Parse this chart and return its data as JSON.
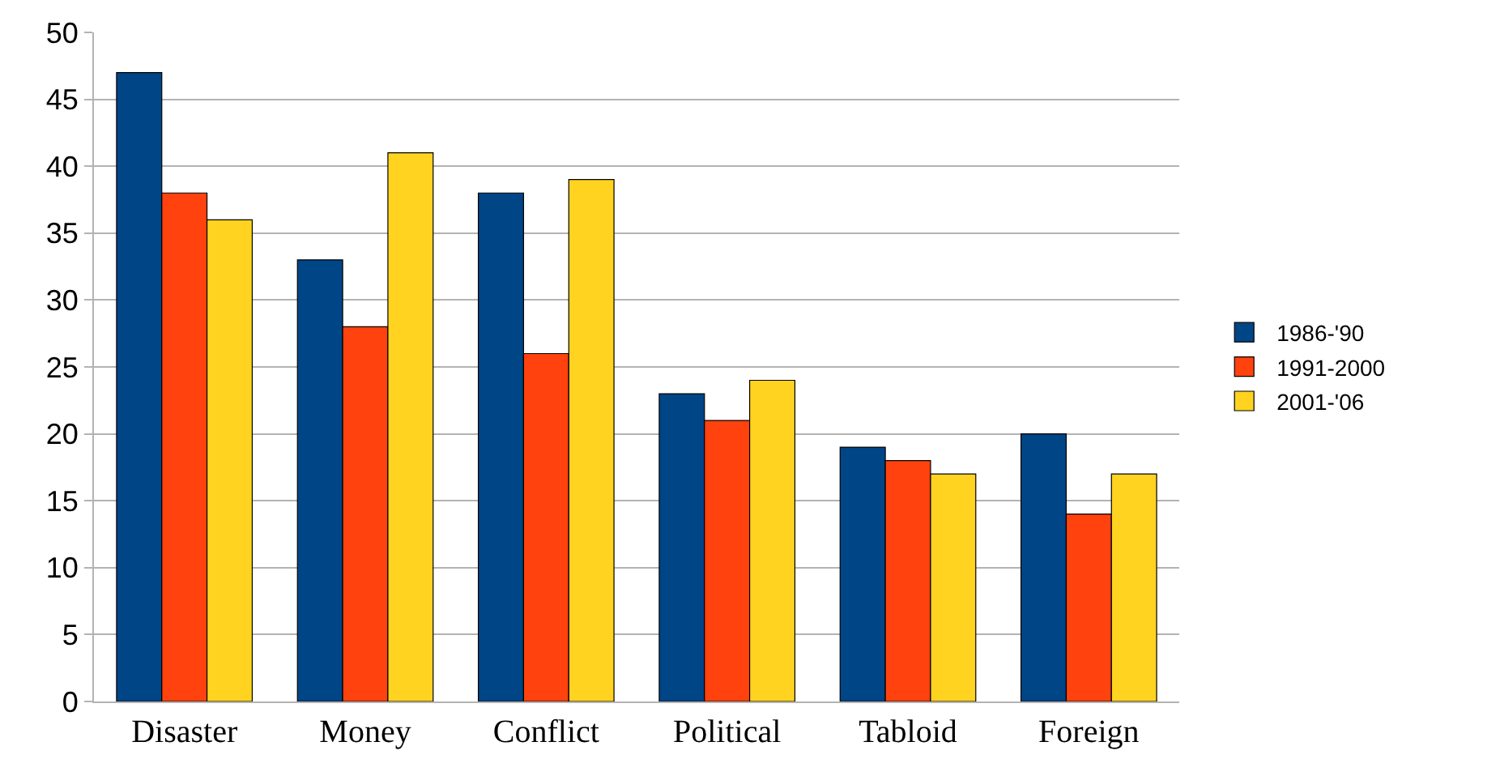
{
  "chart_data": {
    "type": "bar",
    "categories": [
      "Disaster",
      "Money",
      "Conflict",
      "Political",
      "Tabloid",
      "Foreign"
    ],
    "series": [
      {
        "name": "1986-'90",
        "color": "#004586",
        "values": [
          47,
          33,
          38,
          23,
          19,
          20
        ]
      },
      {
        "name": "1991-2000",
        "color": "#ff420e",
        "values": [
          38,
          28,
          26,
          21,
          18,
          14
        ]
      },
      {
        "name": "2001-'06",
        "color": "#ffd320",
        "values": [
          36,
          41,
          39,
          24,
          17,
          17
        ]
      }
    ],
    "ylim": [
      0,
      50
    ],
    "yticks": [
      0,
      5,
      10,
      15,
      20,
      25,
      30,
      35,
      40,
      45,
      50
    ],
    "grid": "y",
    "legend": "right"
  }
}
